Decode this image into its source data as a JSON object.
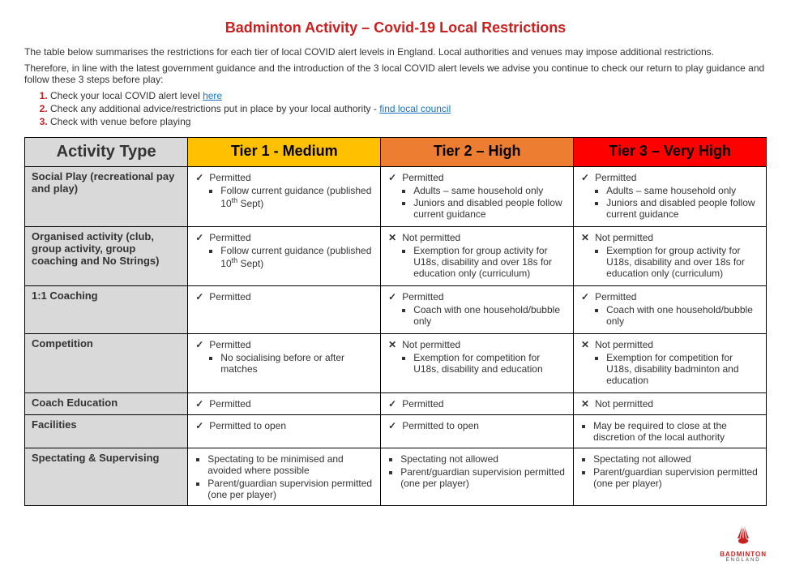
{
  "title": "Badminton Activity – Covid-19 Local Restrictions",
  "intro": {
    "para1": "The table below summarises the restrictions for each tier of local COVID alert levels in England. Local authorities and venues may impose additional restrictions.",
    "para2": "Therefore, in line with the latest government guidance and the introduction of the 3 local COVID alert levels we advise you continue to check our return to play guidance and follow these 3 steps before play:"
  },
  "steps": {
    "s1_pre": "Check your local COVID alert level ",
    "s1_link": "here",
    "s2_pre": "Check any additional advice/restrictions put in place by your local authority - ",
    "s2_link": "find local council",
    "s3": "Check with venue before playing"
  },
  "headers": {
    "activity": "Activity Type",
    "tier1": "Tier 1 - Medium",
    "tier2": "Tier 2 – High",
    "tier3": "Tier 3 – Very High"
  },
  "tier_colors": {
    "tier1": "#ffc000",
    "tier2": "#ed7d31",
    "tier3": "#ff0000"
  },
  "marks": {
    "check": "✓",
    "cross": "✕"
  },
  "rows": {
    "social": {
      "label": "Social Play (recreational pay and play)",
      "t1": {
        "status": "Permitted",
        "notes": [
          "Follow current guidance (published 10|th| Sept)"
        ]
      },
      "t2": {
        "status": "Permitted",
        "notes": [
          "Adults – same household only",
          "Juniors and disabled people follow current guidance"
        ]
      },
      "t3": {
        "status": "Permitted",
        "notes": [
          "Adults – same household only",
          "Juniors and disabled people follow current guidance"
        ]
      }
    },
    "organised": {
      "label": "Organised activity (club, group activity, group coaching and No Strings)",
      "t1": {
        "status": "Permitted",
        "notes": [
          "Follow current guidance (published 10|th| Sept)"
        ]
      },
      "t2": {
        "status": "Not permitted",
        "notes": [
          "Exemption for group activity for U18s, disability and over 18s for education only (curriculum)"
        ]
      },
      "t3": {
        "status": "Not permitted",
        "notes": [
          "Exemption for group activity for U18s, disability and over 18s for education only (curriculum)"
        ]
      }
    },
    "coaching": {
      "label": "1:1 Coaching",
      "t1": {
        "status": "Permitted",
        "notes": []
      },
      "t2": {
        "status": "Permitted",
        "notes": [
          "Coach with one household/bubble only"
        ]
      },
      "t3": {
        "status": "Permitted",
        "notes": [
          "Coach with one household/bubble only"
        ]
      }
    },
    "competition": {
      "label": "Competition",
      "t1": {
        "status": "Permitted",
        "notes": [
          "No socialising before or after matches"
        ]
      },
      "t2": {
        "status": "Not permitted",
        "notes": [
          "Exemption for competition for U18s, disability and education"
        ]
      },
      "t3": {
        "status": "Not permitted",
        "notes": [
          "Exemption for competition for U18s, disability badminton and education"
        ]
      }
    },
    "coachedu": {
      "label": "Coach Education",
      "t1": {
        "status": "Permitted",
        "notes": []
      },
      "t2": {
        "status": "Permitted",
        "notes": []
      },
      "t3": {
        "status": "Not permitted",
        "notes": []
      }
    },
    "facilities": {
      "label": "Facilities",
      "t1": {
        "status": "Permitted to open",
        "notes": []
      },
      "t2": {
        "status": "Permitted to open",
        "notes": []
      },
      "t3": {
        "plain": [
          "May be required to close at the discretion of the local authority"
        ]
      }
    },
    "spectating": {
      "label": "Spectating & Supervising",
      "t1": {
        "plain": [
          "Spectating to be minimised and avoided where possible",
          "Parent/guardian supervision permitted (one per player)"
        ]
      },
      "t2": {
        "plain": [
          "Spectating not allowed",
          "Parent/guardian supervision permitted (one per player)"
        ]
      },
      "t3": {
        "plain": [
          "Spectating not allowed",
          "Parent/guardian supervision permitted (one per player)"
        ]
      }
    }
  },
  "logo": {
    "brand": "BADMINTON",
    "sub": "ENGLAND"
  }
}
